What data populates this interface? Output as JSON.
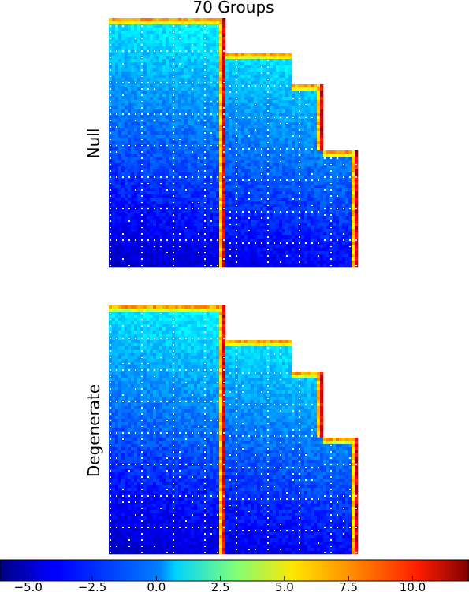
{
  "title": "70 Groups",
  "panels": [
    {
      "label": "Null"
    },
    {
      "label": "Degenerate"
    }
  ],
  "chart_data": {
    "type": "heatmap",
    "title": "70 Groups",
    "row_labels": [
      "Null",
      "Degenerate"
    ],
    "colormap": "jet",
    "colorbar": {
      "range": [
        -6.1,
        12.2
      ],
      "ticks": [
        -5.0,
        -2.5,
        0.0,
        2.5,
        5.0,
        7.5,
        10.0
      ],
      "tick_labels": [
        "−5.0",
        "−2.5",
        "0.0",
        "2.5",
        "5.0",
        "7.5",
        "10.0"
      ]
    },
    "value_pattern": {
      "top_edge_high": 8.0,
      "right_edge_high": 12.0,
      "top_region_mean": 1.5,
      "bottom_left_mean": -4.0
    }
  }
}
